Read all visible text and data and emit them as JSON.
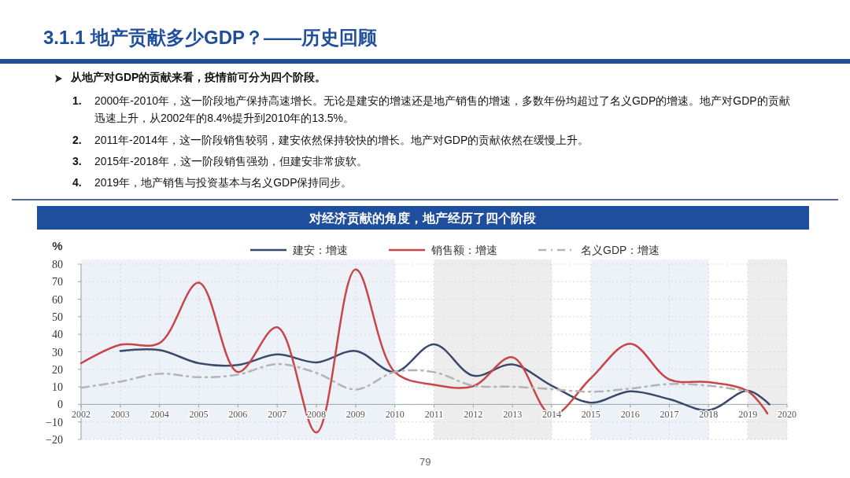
{
  "chart_data": {
    "type": "line",
    "title": "对经济贡献的角度，地产经历了四个阶段",
    "ylabel": "%",
    "annotations": [
      "3.1.1 地产贡献多少GDP？——历史回顾",
      "从地产对GDP的贡献来看，疫情前可分为四个阶段。",
      "1. 2000年-2010年，这一阶段地产保持高速增长。无论是建安的增速还是地产销售的增速，多数年份均超过了名义GDP的增速。地产对GDP的贡献迅速上升，从2002年的8.4%提升到2010年的13.5%。",
      "2. 2011年-2014年，这一阶段销售较弱，建安依然保持较快的增长。地产对GDP的贡献依然在缓慢上升。",
      "3. 2015年-2018年，这一阶段销售强劲，但建安非常疲软。",
      "4. 2019年，地产销售与投资基本与名义GDP保持同步。",
      "79"
    ],
    "xlim": [
      2002,
      2020
    ],
    "xticks": [
      2002,
      2003,
      2004,
      2005,
      2006,
      2007,
      2008,
      2009,
      2010,
      2011,
      2012,
      2013,
      2014,
      2015,
      2016,
      2017,
      2018,
      2019,
      2020
    ],
    "ylim": [
      -20,
      80
    ],
    "yticks": [
      -20,
      -10,
      0,
      10,
      20,
      30,
      40,
      50,
      60,
      70,
      80
    ],
    "grid": true,
    "legend": "top",
    "bands": [
      {
        "axis": "x",
        "from": 2002,
        "to": 2010,
        "color": "#edf1f8"
      },
      {
        "axis": "x",
        "from": 2011,
        "to": 2014,
        "color": "#ededed"
      },
      {
        "axis": "x",
        "from": 2015,
        "to": 2018,
        "color": "#edf1f8"
      },
      {
        "axis": "x",
        "from": 2019,
        "to": 2020,
        "color": "#ededed"
      }
    ],
    "series": [
      {
        "name": "建安：增速",
        "color": "#3b4a6b",
        "line_style": "solid",
        "x": [
          2003,
          2004,
          2005,
          2006,
          2007,
          2008,
          2009,
          2010,
          2011,
          2012,
          2013,
          2014,
          2015,
          2016,
          2017,
          2018,
          2019,
          2019.55
        ],
        "values": [
          30.5,
          31,
          23.5,
          22.5,
          28.5,
          24,
          30.5,
          18.5,
          34.3,
          16.4,
          22.8,
          10.7,
          1,
          7.5,
          3,
          -3.3,
          7.8,
          0
        ]
      },
      {
        "name": "销售额：增速",
        "color": "#c8454a",
        "line_style": "solid",
        "x": [
          2002,
          2003,
          2004,
          2005,
          2006,
          2007,
          2008,
          2009,
          2010,
          2011,
          2012,
          2013,
          2014,
          2015,
          2016,
          2017,
          2018,
          2019,
          2019.5
        ],
        "values": [
          23.5,
          34,
          35,
          69.5,
          18.5,
          44,
          -16,
          77,
          18.5,
          11.2,
          10.4,
          26.9,
          -6,
          15,
          34.6,
          14.2,
          12.7,
          7.5,
          -5.2
        ]
      },
      {
        "name": "名义GDP：增速",
        "color": "#b4b4b4",
        "line_style": "dashdot",
        "x": [
          2002,
          2003,
          2004,
          2005,
          2006,
          2007,
          2008,
          2009,
          2010,
          2011,
          2012,
          2013,
          2014,
          2015,
          2016,
          2017,
          2018,
          2019
        ],
        "values": [
          9.5,
          13,
          17.5,
          15.5,
          17,
          23,
          18,
          8.5,
          18.5,
          18.4,
          10.7,
          10.1,
          8.7,
          7.2,
          9,
          11.6,
          10.7,
          7.5
        ]
      }
    ]
  }
}
